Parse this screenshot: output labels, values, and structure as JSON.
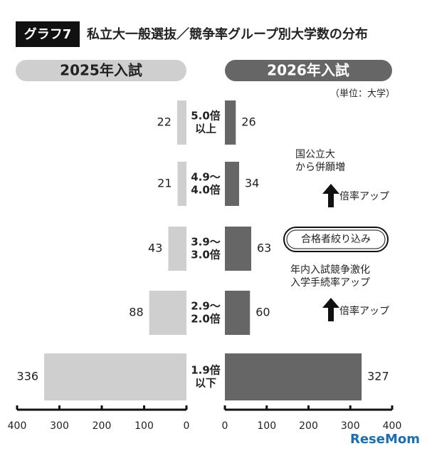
{
  "chart_data": {
    "type": "butterfly",
    "badge": "グラフ7",
    "title": "私立大一般選抜／競争率グループ別大学数の分布",
    "unit": "（単位：大学）",
    "categories": [
      [
        "5.0倍",
        "以上"
      ],
      [
        "4.9〜",
        "4.0倍"
      ],
      [
        "3.9〜",
        "3.0倍"
      ],
      [
        "2.9〜",
        "2.0倍"
      ],
      [
        "1.9倍",
        "以下"
      ]
    ],
    "series": [
      {
        "name": "2025年入試",
        "color": "#cfcfcf",
        "values": [
          22,
          21,
          43,
          88,
          336
        ]
      },
      {
        "name": "2026年入試",
        "color": "#666666",
        "values": [
          26,
          34,
          63,
          60,
          327
        ]
      }
    ],
    "xlim": [
      0,
      400
    ],
    "xticks": [
      400,
      300,
      200,
      100,
      0
    ],
    "x2lim": [
      0,
      400
    ],
    "x2ticks": [
      0,
      100,
      200,
      300,
      400
    ],
    "annotations": [
      [
        "国公立大",
        "から併願増"
      ],
      [
        "倍率アップ"
      ],
      [
        "合格者絞り込み"
      ],
      [
        "年内入試競争激化",
        "入学手続率アップ"
      ],
      [
        "倍率アップ"
      ]
    ],
    "watermark": "ReseMom"
  }
}
